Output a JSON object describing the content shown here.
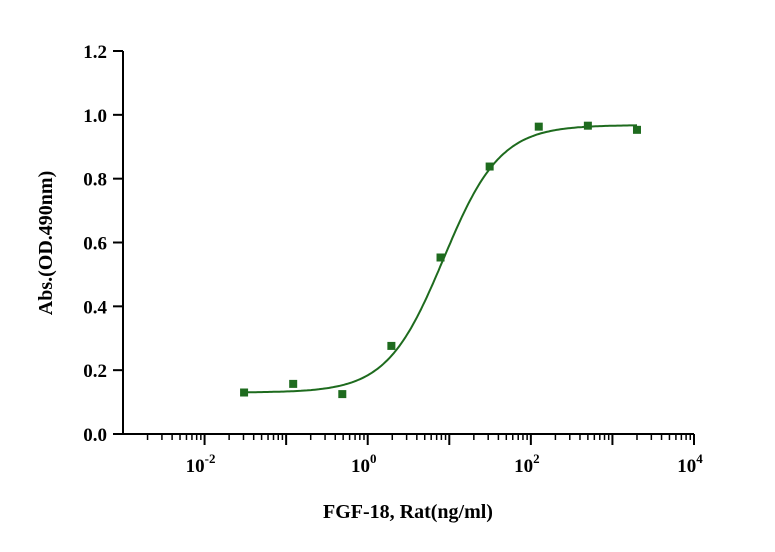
{
  "chart_data": {
    "type": "scatter",
    "title": "",
    "xlabel": "FGF-18, Rat(ng/ml)",
    "ylabel": "Abs.(OD.490nm)",
    "xscale": "log10",
    "xlim": [
      0.001,
      10000
    ],
    "ylim": [
      0,
      1.2
    ],
    "grid": false,
    "legend": "none",
    "x_ticks": [
      {
        "base": "10",
        "exp": "-2",
        "value": 0.01
      },
      {
        "base": "10",
        "exp": "0",
        "value": 1
      },
      {
        "base": "10",
        "exp": "2",
        "value": 100
      },
      {
        "base": "10",
        "exp": "4",
        "value": 10000
      }
    ],
    "y_ticks": [
      "0.0",
      "0.2",
      "0.4",
      "0.6",
      "0.8",
      "1.0",
      "1.2"
    ],
    "series": [
      {
        "name": "FGF-18, Rat",
        "color": "#1e6b1e",
        "marker": "square",
        "x": [
          0.0305,
          0.122,
          0.488,
          1.95,
          7.81,
          31.25,
          125,
          500,
          2000
        ],
        "y": [
          0.13,
          0.157,
          0.125,
          0.276,
          0.553,
          0.838,
          0.963,
          0.966,
          0.953
        ]
      }
    ],
    "fit": {
      "model": "4PL",
      "bottom": 0.13,
      "top": 0.968,
      "ec50": 8.5,
      "hill": 1.25,
      "color": "#1e6b1e"
    }
  }
}
